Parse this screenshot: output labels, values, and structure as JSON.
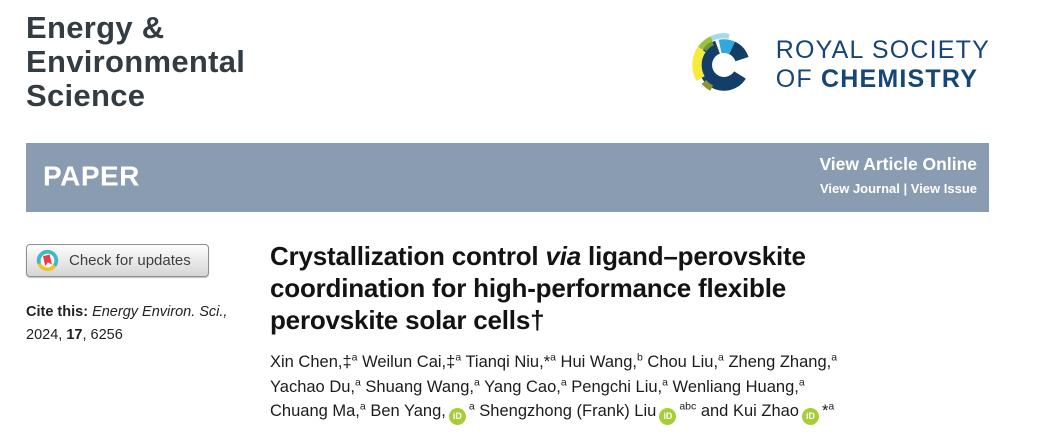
{
  "journal": {
    "title_lines": [
      "Energy &",
      "Environmental",
      "Science"
    ]
  },
  "publisher": {
    "line1": "ROYAL SOCIETY",
    "line2_prefix": "OF ",
    "line2_bold": "CHEMISTRY"
  },
  "banner": {
    "label": "PAPER",
    "view_article": "View Article Online",
    "view_links": "View Journal | View Issue"
  },
  "check_updates": {
    "label": "Check for updates"
  },
  "citation": {
    "prefix": "Cite this: ",
    "journal_italic": "Energy Environ. Sci.,",
    "year": "2024, ",
    "volume": "17",
    "pages": ", 6256"
  },
  "article": {
    "orcid_label": "iD",
    "title_lines": [
      [
        {
          "t": "Crystallization control "
        },
        {
          "i": "via"
        },
        {
          "t": " ligand–perovskite"
        }
      ],
      [
        {
          "t": "coordination for high-performance flexible"
        }
      ],
      [
        {
          "t": "perovskite solar cells†"
        }
      ]
    ],
    "author_lines": [
      [
        {
          "t": "Xin Chen,‡"
        },
        {
          "s": "a"
        },
        {
          "t": " Weilun Cai,‡"
        },
        {
          "s": "a"
        },
        {
          "t": " Tianqi Niu,*"
        },
        {
          "s": "a"
        },
        {
          "t": " Hui Wang,"
        },
        {
          "s": "b"
        },
        {
          "t": " Chou Liu,"
        },
        {
          "s": "a"
        },
        {
          "t": " Zheng Zhang,"
        },
        {
          "s": "a"
        }
      ],
      [
        {
          "t": "Yachao Du,"
        },
        {
          "s": "a"
        },
        {
          "t": " Shuang Wang,"
        },
        {
          "s": "a"
        },
        {
          "t": " Yang Cao,"
        },
        {
          "s": "a"
        },
        {
          "t": " Pengchi Liu,"
        },
        {
          "s": "a"
        },
        {
          "t": " Wenliang Huang,"
        },
        {
          "s": "a"
        }
      ],
      [
        {
          "t": "Chuang Ma,"
        },
        {
          "s": "a"
        },
        {
          "t": " Ben Yang,"
        },
        {
          "o": 1
        },
        {
          "s": "a"
        },
        {
          "t": " Shengzhong (Frank) Liu"
        },
        {
          "o": 1
        },
        {
          "s": "abc"
        },
        {
          "t": " and Kui Zhao"
        },
        {
          "o": 1
        },
        {
          "t": "*"
        },
        {
          "s": "a"
        }
      ]
    ]
  },
  "colors": {
    "banner_bg": "#8a9cb2",
    "journal_title": "#333c42",
    "rsc_navy": "#164577",
    "orcid_green": "#a6ce39",
    "crossmark_red": "#e8404a",
    "crossmark_cyan": "#3fb8ca",
    "crossmark_yellow": "#edc22e"
  }
}
